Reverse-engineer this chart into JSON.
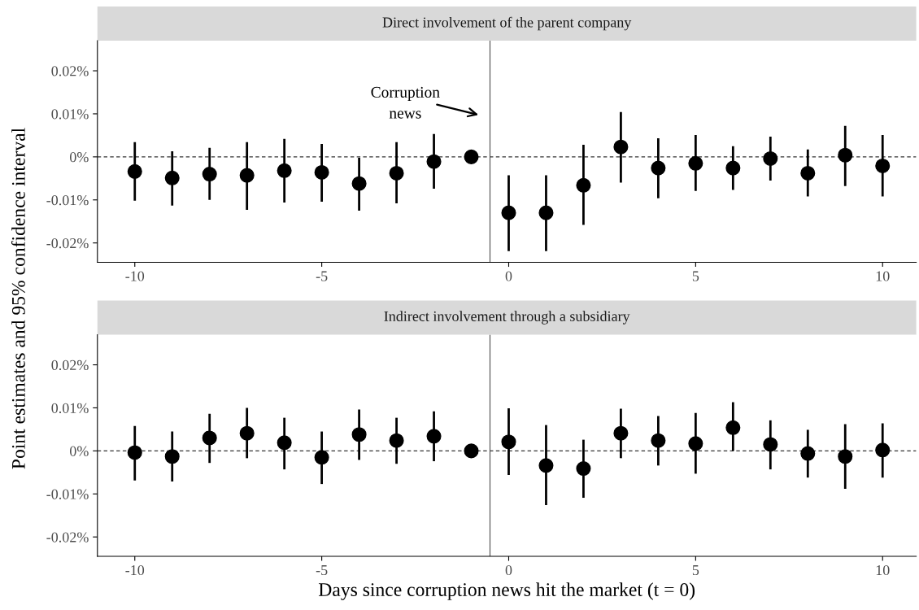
{
  "chart_data": [
    {
      "type": "scatter",
      "title": "Direct involvement of the parent company",
      "ylabel": "Point estimates and 95% confidence interval",
      "x": [
        -10,
        -9,
        -8,
        -7,
        -6,
        -5,
        -4,
        -3,
        -2,
        -1,
        0,
        1,
        2,
        3,
        4,
        5,
        6,
        7,
        8,
        9,
        10
      ],
      "series": [
        {
          "color": "#000000",
          "values": [
            -0.0034,
            -0.0049,
            -0.004,
            -0.0043,
            -0.0032,
            -0.0036,
            -0.0062,
            -0.0038,
            -0.0011,
            0,
            -0.013,
            -0.013,
            -0.0066,
            0.0023,
            -0.0026,
            -0.0015,
            -0.0026,
            -0.0004,
            -0.0038,
            0.0004,
            -0.0021
          ],
          "errors": [
            [
              -0.0102,
              0.0034
            ],
            [
              -0.0113,
              0.0013
            ],
            [
              -0.01,
              0.0021
            ],
            [
              -0.0123,
              0.0034
            ],
            [
              -0.0106,
              0.0042
            ],
            [
              -0.0104,
              0.003
            ],
            [
              -0.0125,
              -0.0002
            ],
            [
              -0.0108,
              0.0034
            ],
            [
              -0.0074,
              0.0053
            ],
            null,
            [
              -0.0219,
              -0.0043
            ],
            [
              -0.0219,
              -0.0043
            ],
            [
              -0.0158,
              0.0028
            ],
            [
              -0.006,
              0.0104
            ],
            [
              -0.0096,
              0.0043
            ],
            [
              -0.0079,
              0.0051
            ],
            [
              -0.0077,
              0.0025
            ],
            [
              -0.0055,
              0.0047
            ],
            [
              -0.0092,
              0.0017
            ],
            [
              -0.0068,
              0.0072
            ],
            [
              -0.0092,
              0.0051
            ]
          ]
        }
      ],
      "marker": "circle",
      "xlim": [
        -11,
        10.9
      ],
      "xticks": [
        -10,
        -5,
        0,
        5,
        10
      ],
      "ylim": [
        -0.0245,
        0.027
      ],
      "yticks": [
        {
          "value": -0.02,
          "label": "-0.02%"
        },
        {
          "value": -0.01,
          "label": "-0.01%"
        },
        {
          "value": 0,
          "label": "0%"
        },
        {
          "value": 0.01,
          "label": "0.01%"
        },
        {
          "value": 0.02,
          "label": "0.02%"
        }
      ],
      "ref_lines": [
        {
          "axis": "y",
          "value": 0,
          "color": "#333333",
          "line_style": "dashed"
        },
        {
          "axis": "x",
          "value": -0.5,
          "color": "#4d4d4d",
          "line_style": "solid"
        }
      ],
      "annotations": [
        "Corruption\nnews"
      ],
      "grid": false,
      "legend": false
    },
    {
      "type": "scatter",
      "title": "Indirect involvement through a subsidiary",
      "xlabel": "Days since corruption news hit the market (t = 0)",
      "x": [
        -10,
        -9,
        -8,
        -7,
        -6,
        -5,
        -4,
        -3,
        -2,
        -1,
        0,
        1,
        2,
        3,
        4,
        5,
        6,
        7,
        8,
        9,
        10
      ],
      "series": [
        {
          "color": "#000000",
          "values": [
            -0.0004,
            -0.0013,
            0.003,
            0.0041,
            0.0019,
            -0.0015,
            0.0038,
            0.0024,
            0.0034,
            0,
            0.0021,
            -0.0034,
            -0.0041,
            0.0041,
            0.0024,
            0.0017,
            0.0054,
            0.0015,
            -0.0006,
            -0.0013,
            0.0002
          ],
          "errors": [
            [
              -0.0069,
              0.0058
            ],
            [
              -0.0071,
              0.0045
            ],
            [
              -0.0028,
              0.0086
            ],
            [
              -0.0017,
              0.01
            ],
            [
              -0.0043,
              0.0077
            ],
            [
              -0.0077,
              0.0045
            ],
            [
              -0.0021,
              0.0096
            ],
            [
              -0.003,
              0.0077
            ],
            [
              -0.0024,
              0.0092
            ],
            null,
            [
              -0.0056,
              0.0099
            ],
            [
              -0.0126,
              0.006
            ],
            [
              -0.0109,
              0.0026
            ],
            [
              -0.0017,
              0.0098
            ],
            [
              -0.0034,
              0.0081
            ],
            [
              -0.0053,
              0.0088
            ],
            [
              0.0,
              0.0113
            ],
            [
              -0.0043,
              0.0071
            ],
            [
              -0.0062,
              0.0049
            ],
            [
              -0.0088,
              0.0062
            ],
            [
              -0.0062,
              0.0064
            ]
          ]
        }
      ],
      "marker": "circle",
      "xlim": [
        -11,
        10.9
      ],
      "xticks": [
        -10,
        -5,
        0,
        5,
        10
      ],
      "ylim": [
        -0.0245,
        0.027
      ],
      "yticks": [
        {
          "value": -0.02,
          "label": "-0.02%"
        },
        {
          "value": -0.01,
          "label": "-0.01%"
        },
        {
          "value": 0,
          "label": "0%"
        },
        {
          "value": 0.01,
          "label": "0.01%"
        },
        {
          "value": 0.02,
          "label": "0.02%"
        }
      ],
      "ref_lines": [
        {
          "axis": "y",
          "value": 0,
          "color": "#333333",
          "line_style": "dashed"
        },
        {
          "axis": "x",
          "value": -0.5,
          "color": "#4d4d4d",
          "line_style": "solid"
        }
      ],
      "grid": false,
      "legend": false
    }
  ]
}
